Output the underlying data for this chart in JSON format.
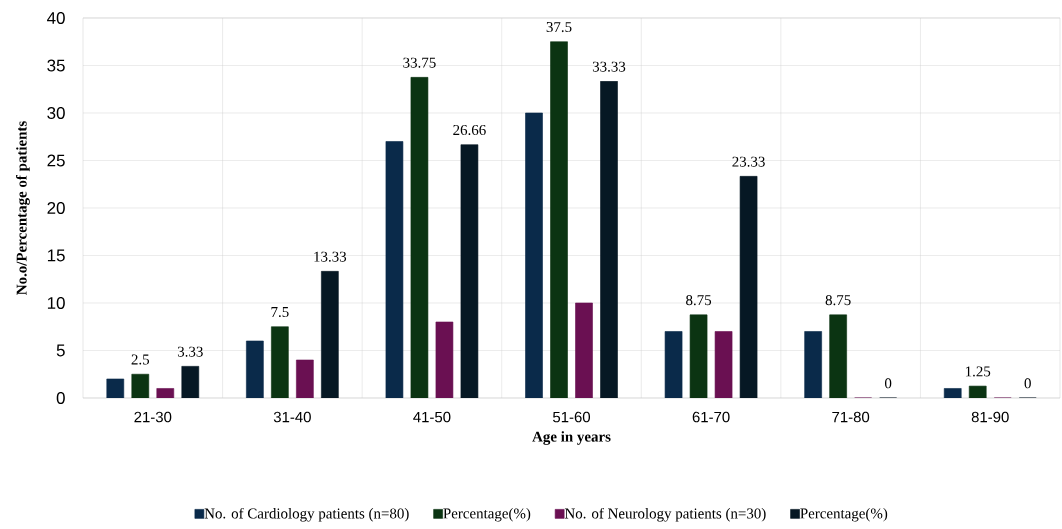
{
  "chart_data": {
    "type": "bar",
    "xlabel": "Age in years",
    "ylabel": "No.o/Percentage  of patients",
    "categories": [
      "21-30",
      "31-40",
      "41-50",
      "51-60",
      "61-70",
      "71-80",
      "81-90"
    ],
    "series": [
      {
        "name": "No. of Cardiology patients (n=80)",
        "color": "#0a2a4a",
        "values": [
          2,
          6,
          27,
          30,
          7,
          7,
          1
        ]
      },
      {
        "name": "Percentage(%)",
        "color": "#0b3412",
        "values": [
          2.5,
          7.5,
          33.75,
          37.5,
          8.75,
          8.75,
          1.25
        ],
        "value_labels": [
          "2.5",
          "7.5",
          "33.75",
          "37.5",
          "8.75",
          "8.75",
          "1.25"
        ]
      },
      {
        "name": "No. of Neurology  patients (n=30)",
        "color": "#6a1052",
        "values": [
          1,
          4,
          8,
          10,
          7,
          0,
          0
        ]
      },
      {
        "name": "Percentage(%)",
        "color": "#061824",
        "values": [
          3.33,
          13.33,
          26.66,
          33.33,
          23.33,
          0,
          0
        ],
        "value_labels": [
          "3.33",
          "13.33",
          "26.66",
          "33.33",
          "23.33",
          "0",
          "0"
        ]
      }
    ],
    "ylim": [
      0,
      40
    ],
    "yticks": [
      0,
      5,
      10,
      15,
      20,
      25,
      30,
      35,
      40
    ],
    "grid": true,
    "legend": "bottom"
  }
}
